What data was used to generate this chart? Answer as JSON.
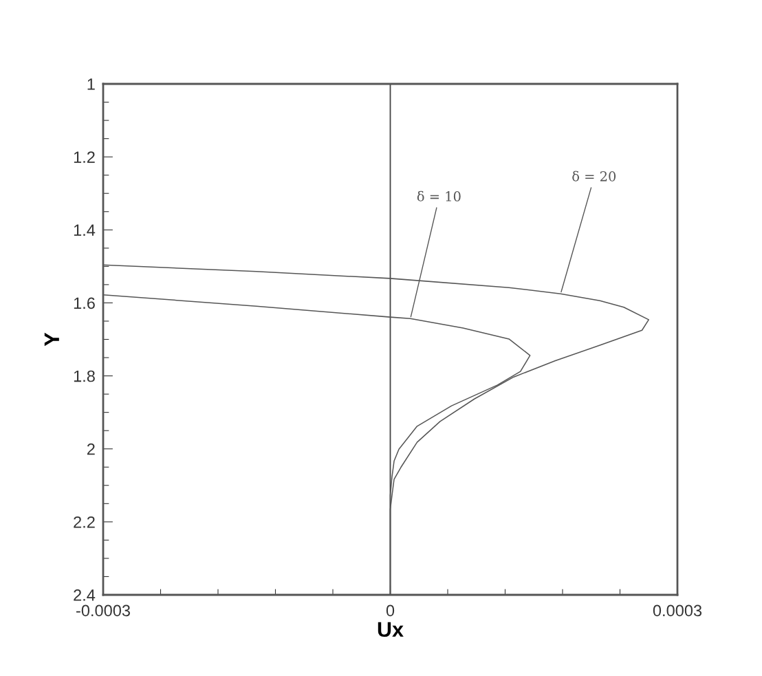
{
  "chart_data": {
    "type": "line",
    "xlabel": "Ux",
    "ylabel": "Y",
    "xlim": [
      -0.0003,
      0.0003
    ],
    "xticks": [
      -0.0003,
      {
        "value": -0.00024,
        "label": null
      },
      {
        "value": -0.00018,
        "label": null
      },
      {
        "value": -0.00012,
        "label": null
      },
      {
        "value": -6e-05,
        "label": null
      },
      0,
      {
        "value": 6e-05,
        "label": null
      },
      {
        "value": 0.00012,
        "label": null
      },
      {
        "value": 0.00018,
        "label": null
      },
      {
        "value": 0.00024,
        "label": null
      },
      0.0003
    ],
    "ylim": [
      2.4,
      1
    ],
    "yticks": [
      1,
      {
        "value": 1.05,
        "label": null
      },
      {
        "value": 1.1,
        "label": null
      },
      {
        "value": 1.15,
        "label": null
      },
      1.2,
      {
        "value": 1.25,
        "label": null
      },
      {
        "value": 1.3,
        "label": null
      },
      {
        "value": 1.35,
        "label": null
      },
      1.4,
      {
        "value": 1.45,
        "label": null
      },
      {
        "value": 1.5,
        "label": null
      },
      {
        "value": 1.55,
        "label": null
      },
      1.6,
      {
        "value": 1.65,
        "label": null
      },
      {
        "value": 1.7,
        "label": null
      },
      {
        "value": 1.75,
        "label": null
      },
      1.8,
      {
        "value": 1.85,
        "label": null
      },
      {
        "value": 1.9,
        "label": null
      },
      {
        "value": 1.95,
        "label": null
      },
      2,
      {
        "value": 2.05,
        "label": null
      },
      {
        "value": 2.1,
        "label": null
      },
      {
        "value": 2.15,
        "label": null
      },
      2.2,
      {
        "value": 2.25,
        "label": null
      },
      {
        "value": 2.3,
        "label": null
      },
      {
        "value": 2.35,
        "label": null
      },
      2.4
    ],
    "grid": false,
    "legend": false,
    "marker": "none",
    "line_style": "solid",
    "ref_lines": [
      {
        "axis": "x",
        "value": 0,
        "color": "#444444"
      }
    ],
    "series": [
      {
        "color": "#555555",
        "x": [
          -0.0003,
          -0.00014,
          0,
          0.000124,
          0.000178,
          0.000219,
          0.000244,
          0.00027,
          0.000263,
          0.000219,
          0.000172,
          0.000129,
          8.8e-05,
          5.2e-05,
          2.8e-05,
          1.1e-05,
          4e-06,
          1.8e-06,
          0,
          0
        ],
        "values": [
          1.496,
          1.514,
          1.533,
          1.558,
          1.575,
          1.594,
          1.612,
          1.646,
          1.675,
          1.716,
          1.759,
          1.803,
          1.863,
          1.925,
          1.982,
          2.051,
          2.083,
          2.127,
          2.165,
          2.4
        ]
      },
      {
        "color": "#555555",
        "x": [
          -0.0003,
          -0.00014,
          0,
          2.1e-05,
          7.6e-05,
          0.000124,
          0.000146,
          0.000136,
          0.000112,
          6.4e-05,
          2.8e-05,
          9e-06,
          4e-06,
          1.8e-06,
          0,
          0
        ],
        "values": [
          1.578,
          1.609,
          1.639,
          1.643,
          1.669,
          1.699,
          1.744,
          1.788,
          1.825,
          1.882,
          1.938,
          2.001,
          2.033,
          2.076,
          2.127,
          2.4
        ]
      }
    ],
    "annotations": [
      {
        "text": "δ = 10",
        "x": 2.1e-05,
        "y": 1.643
      },
      {
        "text": "δ = 20",
        "x": 0.000178,
        "y": 1.575
      }
    ]
  }
}
